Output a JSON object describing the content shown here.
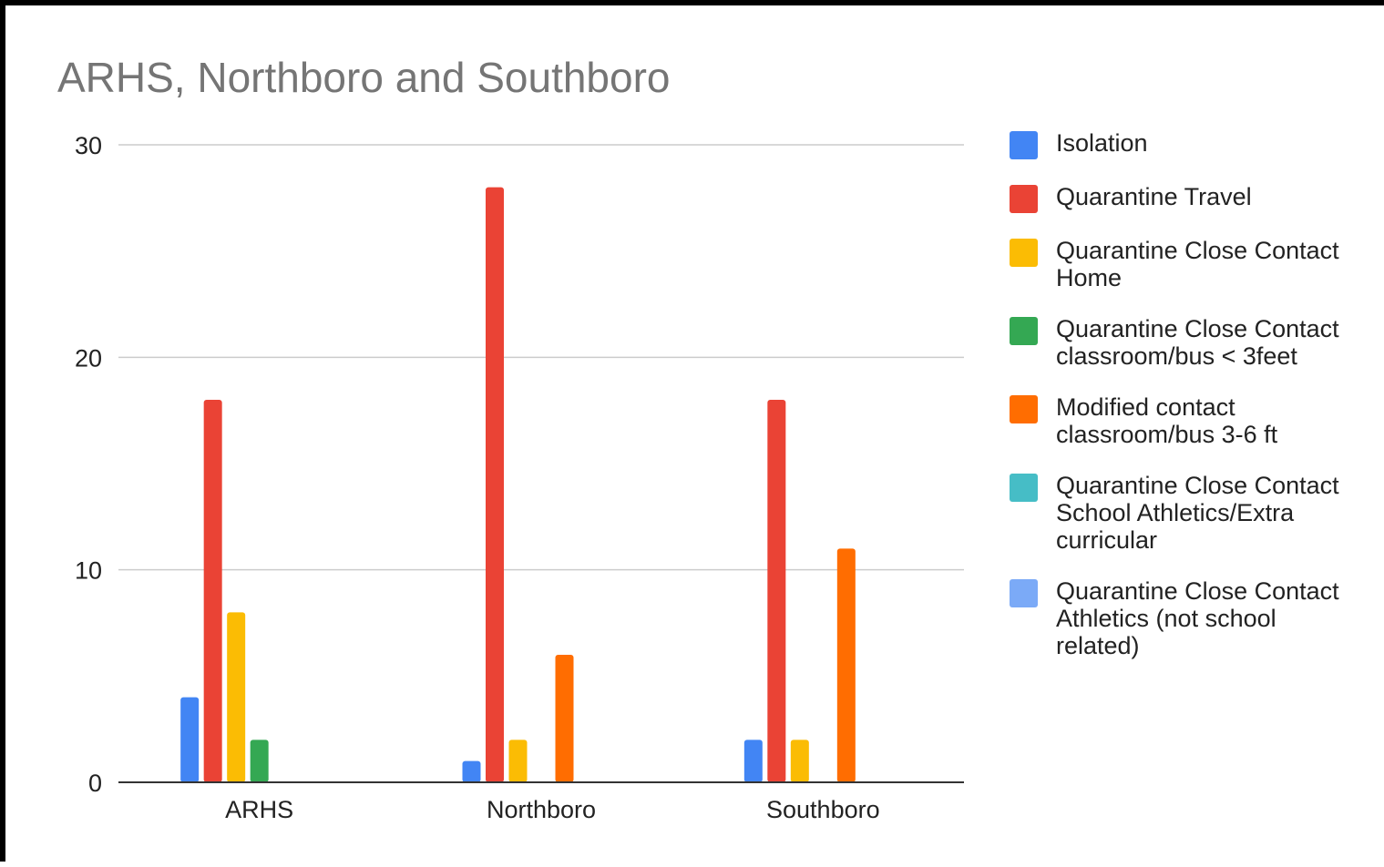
{
  "chart_data": {
    "type": "bar",
    "title": "ARHS, Northboro and Southboro",
    "categories": [
      "ARHS",
      "Northboro",
      "Southboro"
    ],
    "ylim": [
      0,
      30
    ],
    "yticks": [
      0,
      10,
      20,
      30
    ],
    "grid": true,
    "legend_position": "right",
    "series": [
      {
        "name": "Isolation",
        "color": "#4285F4",
        "values": [
          4,
          1,
          2
        ]
      },
      {
        "name": "Quarantine Travel",
        "color": "#EA4335",
        "values": [
          18,
          28,
          18
        ]
      },
      {
        "name": "Quarantine Close Contact Home",
        "color": "#FBBC04",
        "values": [
          8,
          2,
          2
        ]
      },
      {
        "name": "Quarantine Close Contact classroom/bus < 3feet",
        "color": "#34A853",
        "values": [
          2,
          0,
          0
        ]
      },
      {
        "name": "Modified contact classroom/bus 3-6 ft",
        "color": "#FF6D01",
        "values": [
          0,
          6,
          11
        ]
      },
      {
        "name": "Quarantine Close Contact School Athletics/Extra curricular",
        "color": "#46BDC6",
        "values": [
          0,
          0,
          0
        ]
      },
      {
        "name": "Quarantine Close Contact Athletics (not school related)",
        "color": "#7BAAF7",
        "values": [
          0,
          0,
          0
        ]
      }
    ]
  }
}
